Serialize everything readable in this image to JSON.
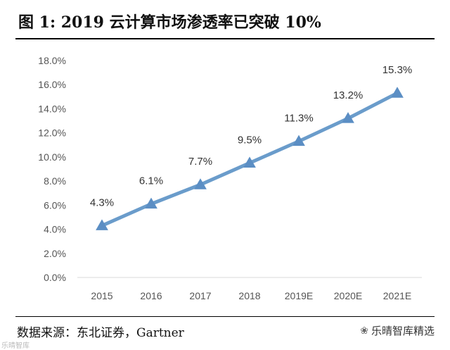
{
  "title": "图  1:  2019 云计算市场渗透率已突破 10%",
  "source": "数据来源：东北证券，Gartner",
  "watermark": {
    "text": "乐晴智库精选",
    "icon": "wechat-icon",
    "left_text": "乐晴智库"
  },
  "colors": {
    "line": "#6A9CCB",
    "marker": "#5B8EC4"
  },
  "chart_data": {
    "type": "line",
    "title": "",
    "xlabel": "",
    "ylabel": "",
    "categories": [
      "2015",
      "2016",
      "2017",
      "2018",
      "2019E",
      "2020E",
      "2021E"
    ],
    "series": [
      {
        "values": [
          4.3,
          6.1,
          7.7,
          9.5,
          11.3,
          13.2,
          15.3
        ],
        "labels": [
          "4.3%",
          "6.1%",
          "7.7%",
          "9.5%",
          "11.3%",
          "13.2%",
          "15.3%"
        ]
      }
    ],
    "ylim": [
      0,
      18
    ],
    "yticks": [
      "0.0%",
      "2.0%",
      "4.0%",
      "6.0%",
      "8.0%",
      "10.0%",
      "12.0%",
      "14.0%",
      "16.0%",
      "18.0%"
    ],
    "marker": "triangle",
    "grid": false,
    "legend": "none"
  }
}
